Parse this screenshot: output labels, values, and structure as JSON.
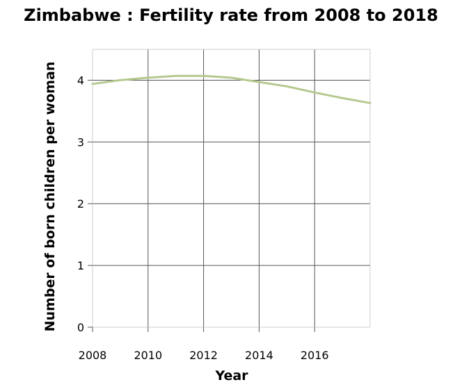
{
  "chart_data": {
    "type": "line",
    "title": "Zimbabwe : Fertility rate from 2008 to 2018",
    "xlabel": "Year",
    "ylabel": "Number of born children per woman",
    "xlim": [
      2008,
      2018
    ],
    "ylim": [
      0,
      4.5
    ],
    "xticks": [
      2008,
      2010,
      2012,
      2014,
      2016
    ],
    "yticks": [
      0,
      1,
      2,
      3,
      4
    ],
    "grid": true,
    "legend": "none",
    "series": [
      {
        "color": "#b5c98f",
        "x": [
          2008,
          2009,
          2010,
          2011,
          2012,
          2013,
          2014,
          2015,
          2016,
          2017,
          2018
        ],
        "y": [
          3.94,
          4.0,
          4.04,
          4.07,
          4.07,
          4.04,
          3.97,
          3.9,
          3.8,
          3.71,
          3.63
        ]
      }
    ]
  }
}
